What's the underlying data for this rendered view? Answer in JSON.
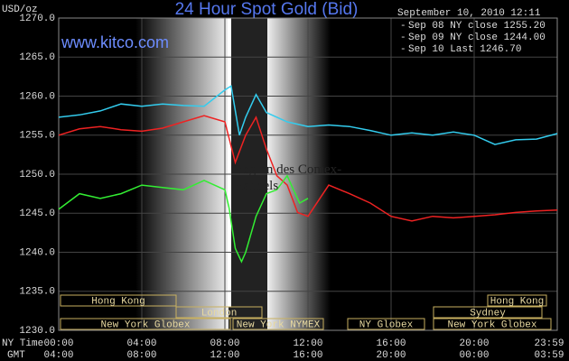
{
  "chart_data": {
    "type": "line",
    "title": "24 Hour Spot Gold (Bid)",
    "site": "www.kitco.com",
    "timestamp": "September 10, 2010 12:11",
    "y_label": "USD/oz",
    "annotation": "Beginn des Comex-Handels",
    "x_row_labels": [
      "NY Time",
      "GMT"
    ],
    "xlim": [
      0,
      24
    ],
    "ylim": [
      1230,
      1270
    ],
    "xticks": [
      {
        "value": 0,
        "label": "00:00"
      },
      {
        "value": 4,
        "label": "04:00"
      },
      {
        "value": 8,
        "label": "08:00"
      },
      {
        "value": 12,
        "label": "12:00"
      },
      {
        "value": 16,
        "label": "16:00"
      },
      {
        "value": 20,
        "label": "20:00"
      },
      {
        "value": 24,
        "label": "23:59"
      }
    ],
    "gmt_ticks": [
      {
        "value": 0,
        "label": "04:00"
      },
      {
        "value": 4,
        "label": "08:00"
      },
      {
        "value": 8,
        "label": "12:00"
      },
      {
        "value": 12,
        "label": "16:00"
      },
      {
        "value": 16,
        "label": "20:00"
      },
      {
        "value": 20,
        "label": "00:00"
      },
      {
        "value": 24,
        "label": "03:59"
      }
    ],
    "yticks": [
      {
        "value": 1230,
        "label": "1230.0"
      },
      {
        "value": 1235,
        "label": "1235.0"
      },
      {
        "value": 1240,
        "label": "1240.0"
      },
      {
        "value": 1245,
        "label": "1245.0"
      },
      {
        "value": 1250,
        "label": "1250.0"
      },
      {
        "value": 1255,
        "label": "1255.0"
      },
      {
        "value": 1260,
        "label": "1260.0"
      },
      {
        "value": 1265,
        "label": "1265.0"
      },
      {
        "value": 1270,
        "label": "1270.0"
      }
    ],
    "grid": true,
    "sessions": [
      "Hong Kong",
      "London",
      "New York Globex",
      "New York NYMEX",
      "NY Globex",
      "Hong Kong",
      "Sydney",
      "New York Globex"
    ],
    "series": [
      {
        "name": "Sep 08 NY close 1255.20",
        "color": "#33ccee",
        "x": [
          0,
          1,
          2,
          3,
          4,
          5,
          6,
          7,
          8,
          8.3,
          8.7,
          9,
          9.5,
          10,
          11,
          12,
          13,
          14,
          15,
          16,
          17,
          18,
          19,
          20,
          21,
          22,
          23,
          24
        ],
        "values": [
          1257.3,
          1257.6,
          1258.1,
          1259,
          1258.7,
          1259,
          1258.8,
          1258.7,
          1260.8,
          1261.3,
          1255,
          1257.3,
          1260.2,
          1257.9,
          1256.7,
          1256.1,
          1256.3,
          1256.1,
          1255.6,
          1255,
          1255.3,
          1255,
          1255.4,
          1255,
          1253.8,
          1254.4,
          1254.5,
          1255.2
        ]
      },
      {
        "name": "Sep 09 NY close 1244.00",
        "color": "#ee2222",
        "x": [
          0,
          1,
          2,
          3,
          4,
          5,
          6,
          7,
          8,
          8.5,
          9,
          9.5,
          10,
          10.5,
          11,
          11.5,
          12,
          13,
          14,
          15,
          16,
          17,
          18,
          19,
          20,
          21,
          22,
          23,
          24
        ],
        "values": [
          1255,
          1255.8,
          1256.1,
          1255.7,
          1255.5,
          1255.9,
          1256.7,
          1257.5,
          1256.7,
          1251.5,
          1255,
          1257.3,
          1253.2,
          1249.8,
          1248.6,
          1245.1,
          1244.6,
          1248.6,
          1247.5,
          1246.3,
          1244.6,
          1244,
          1244.6,
          1244.4,
          1244.6,
          1244.8,
          1245.1,
          1245.3,
          1245.4
        ]
      },
      {
        "name": "Sep 10 Last 1246.70",
        "color": "#33ee33",
        "x": [
          0,
          1,
          2,
          3,
          4,
          5,
          6,
          7,
          8,
          8.2,
          8.5,
          8.8,
          9,
          9.5,
          10,
          10.5,
          11,
          11.3,
          11.6,
          12
        ],
        "values": [
          1245.5,
          1247.5,
          1246.9,
          1247.5,
          1248.6,
          1248.3,
          1248,
          1249.2,
          1248,
          1245.7,
          1240.5,
          1238.8,
          1240,
          1244.6,
          1247.5,
          1248,
          1249.8,
          1248,
          1246.3,
          1246.9
        ]
      }
    ]
  }
}
